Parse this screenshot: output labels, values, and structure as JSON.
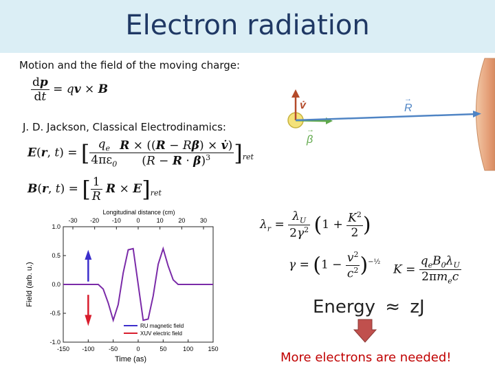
{
  "slide": {
    "title": "Electron radiation",
    "motion_text": "Motion and the field of the moving charge:",
    "jackson_text": "J. D. Jackson, Classical Electrodinamics:",
    "energy_label": "Energy",
    "approx_symbol": "≈",
    "energy_unit": "zJ",
    "conclusion": "More electrons are needed!"
  },
  "diagram": {
    "v_label": "v̇",
    "R_label": "R",
    "beta_label": "β"
  },
  "chart_data": {
    "type": "line",
    "xlabel": "Time (as)",
    "x2label": "Longitudinal distance (cm)",
    "ylabel": "Field (arb. u.)",
    "xlim": [
      -150,
      150
    ],
    "x_ticks": [
      -150,
      -100,
      -50,
      0,
      50,
      100,
      150
    ],
    "x2_ticks": [
      -30,
      -20,
      -10,
      0,
      10,
      20,
      30
    ],
    "ylim": [
      -1.0,
      1.0
    ],
    "y_ticks": [
      1.0,
      0.5,
      0.0,
      -0.5,
      -1.0
    ],
    "series": [
      {
        "name": "RU magnetic field",
        "color": "#3b2ecb"
      },
      {
        "name": "XUV electric field",
        "color": "#d81c2c"
      }
    ],
    "waveform": {
      "x": [
        -150,
        -90,
        -80,
        -70,
        -60,
        -50,
        -40,
        -30,
        -20,
        -10,
        0,
        10,
        20,
        30,
        40,
        50,
        60,
        70,
        80,
        90,
        150
      ],
      "y": [
        0,
        0,
        0,
        -0.08,
        -0.32,
        -0.62,
        -0.35,
        0.2,
        0.6,
        0.62,
        0.0,
        -0.62,
        -0.6,
        -0.2,
        0.35,
        0.62,
        0.32,
        0.08,
        0,
        0,
        0
      ]
    }
  }
}
